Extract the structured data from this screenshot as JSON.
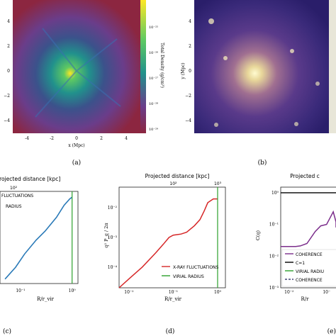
{
  "panels": {
    "a": {
      "caption": "(a)",
      "xlabel": "x (Mpc)",
      "colorbar_label": "Total Density (g/cm³)",
      "colorbar_ticks": [
        "10⁻²⁵",
        "10⁻²⁶",
        "10⁻²⁷",
        "10⁻²⁸",
        "10⁻²⁹"
      ],
      "xticks": [
        "-4",
        "-2",
        "0",
        "2",
        "4"
      ],
      "yticks": [
        "4",
        "2",
        "0",
        "−2",
        "−4"
      ]
    },
    "b": {
      "caption": "(b)",
      "ylabel": "y (Mpc)",
      "yticks": [
        "4",
        "2",
        "0",
        "−2",
        "−4"
      ]
    },
    "c": {
      "caption": "(c)",
      "top_label": "Projected distance [kpc]",
      "top_tick": "10²",
      "xlabel": "R/r_vir",
      "xticks": [
        "10⁻¹",
        "10⁰"
      ],
      "legend": [
        "FLUCTUATIONS",
        "RADIUS"
      ]
    },
    "d": {
      "caption": "(d)",
      "top_label": "Projected distance [kpc]",
      "top_ticks": [
        "10²",
        "10³"
      ],
      "xlabel": "R/r_vir",
      "ylabel": "q² P_q / 2π",
      "xticks": [
        "10⁻²",
        "10⁻¹",
        "10⁰"
      ],
      "yticks": [
        "10⁻²",
        "10⁻³",
        "10⁻⁴"
      ],
      "legend": [
        "X-RAY FLUCTUATIONS",
        "VIRIAL RADIUS"
      ]
    },
    "e": {
      "caption": "(e)",
      "top_label": "Projected c",
      "xlabel": "R/r",
      "ylabel": "C(q)",
      "xticks": [
        "10⁻²",
        "10⁻"
      ],
      "yticks": [
        "10⁰",
        "10⁻¹",
        "10⁻²",
        "10⁻³"
      ],
      "legend": [
        "COHERENCE",
        "C=1",
        "VIRIAL RADIU",
        "COHERENCE"
      ]
    }
  },
  "chart_data": [
    {
      "panel": "c",
      "type": "line",
      "xscale": "log",
      "x": [
        0.05,
        0.08,
        0.12,
        0.2,
        0.3,
        0.5,
        0.7,
        0.9,
        1.0
      ],
      "series": [
        {
          "name": "FLUCTUATIONS",
          "color": "#2a7ab8",
          "values": [
            0.1,
            0.18,
            0.35,
            0.7,
            1.1,
            2.2,
            4.0,
            5.5,
            6.0
          ]
        }
      ],
      "vline": 1.0
    },
    {
      "panel": "d",
      "type": "line",
      "xscale": "log",
      "yscale": "log",
      "xlim": [
        0.006,
        1.5
      ],
      "ylim": [
        2e-05,
        0.05
      ],
      "x": [
        0.006,
        0.01,
        0.02,
        0.04,
        0.06,
        0.08,
        0.1,
        0.15,
        0.2,
        0.3,
        0.4,
        0.5,
        0.6,
        0.8,
        1.0
      ],
      "series": [
        {
          "name": "X-RAY FLUCTUATIONS",
          "color": "#d62728",
          "values": [
            2e-05,
            4e-05,
            0.0001,
            0.0003,
            0.0006,
            0.001,
            0.0012,
            0.0013,
            0.0015,
            0.0025,
            0.004,
            0.008,
            0.015,
            0.02,
            0.02
          ]
        }
      ],
      "vline": {
        "name": "VIRIAL RADIUS",
        "x": 1.0,
        "color": "#2ca02c"
      }
    },
    {
      "panel": "e",
      "type": "line",
      "xscale": "log",
      "yscale": "log",
      "xlim": [
        0.006,
        0.3
      ],
      "ylim": [
        0.001,
        1.5
      ],
      "x": [
        0.006,
        0.01,
        0.015,
        0.02,
        0.03,
        0.05,
        0.07,
        0.1,
        0.12,
        0.15,
        0.18,
        0.2,
        0.25
      ],
      "series": [
        {
          "name": "COHERENCE",
          "color": "#7b2d8b",
          "values": [
            0.02,
            0.02,
            0.02,
            0.021,
            0.025,
            0.06,
            0.09,
            0.1,
            0.15,
            0.25,
            0.12,
            0.08,
            0.1
          ]
        },
        {
          "name": "C=1",
          "color": "#000000",
          "values": [
            1,
            1,
            1,
            1,
            1,
            1,
            1,
            1,
            1,
            1,
            1,
            1,
            1
          ]
        }
      ]
    }
  ]
}
